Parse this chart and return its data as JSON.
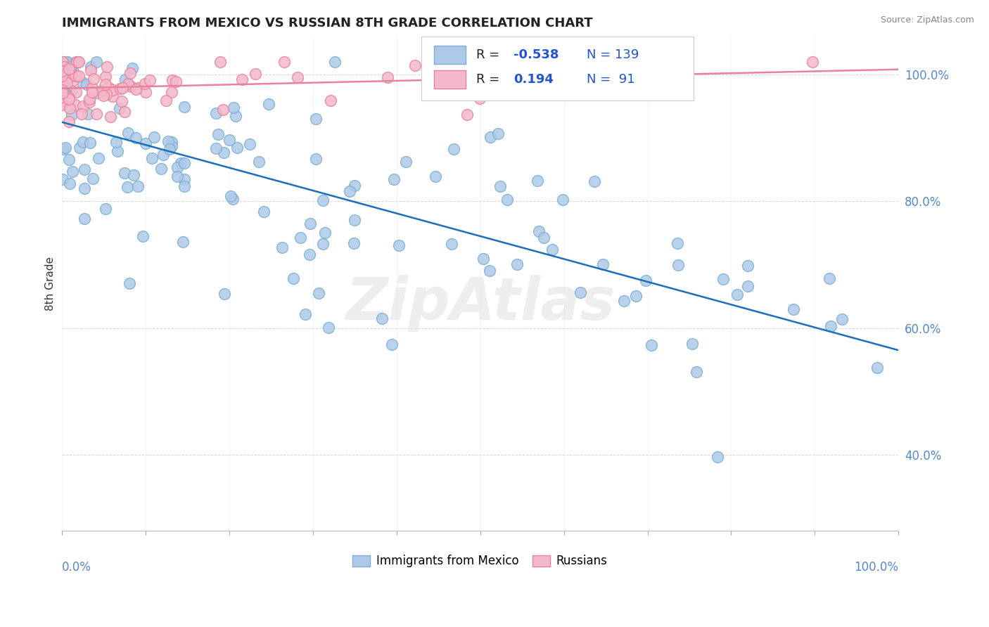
{
  "title": "IMMIGRANTS FROM MEXICO VS RUSSIAN 8TH GRADE CORRELATION CHART",
  "source": "Source: ZipAtlas.com",
  "ylabel": "8th Grade",
  "legend_blue_label": "Immigrants from Mexico",
  "legend_pink_label": "Russians",
  "R_blue": -0.538,
  "N_blue": 139,
  "R_pink": 0.194,
  "N_pink": 91,
  "blue_face": "#aec9e8",
  "blue_edge": "#7bafd4",
  "pink_face": "#f4b8cb",
  "pink_edge": "#e8829a",
  "blue_line": "#1a6fba",
  "pink_line": "#e8829a",
  "blue_trend_x": [
    0.0,
    1.0
  ],
  "blue_trend_y": [
    0.925,
    0.565
  ],
  "pink_trend_x": [
    0.0,
    1.0
  ],
  "pink_trend_y": [
    0.978,
    1.008
  ],
  "ytick_values": [
    0.4,
    0.6,
    0.8,
    1.0
  ],
  "ytick_labels": [
    "40.0%",
    "60.0%",
    "80.0%",
    "100.0%"
  ],
  "xlim": [
    0.0,
    1.0
  ],
  "ylim": [
    0.28,
    1.06
  ],
  "title_color": "#222222",
  "axis_label_color": "#333333",
  "tick_color": "#5588cc",
  "watermark": "ZipAtlas",
  "seed": 42
}
